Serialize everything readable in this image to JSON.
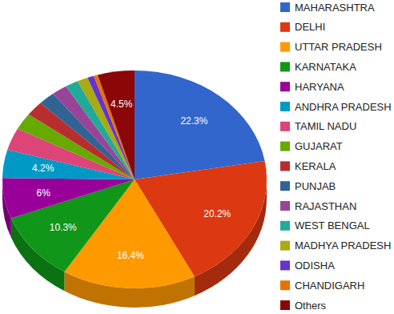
{
  "chart_data": {
    "type": "pie",
    "categories": [
      "MAHARASHTRA",
      "DELHI",
      "UTTAR PRADESH",
      "KARNATAKA",
      "HARYANA",
      "ANDHRA PRADESH",
      "TAMIL NADU",
      "GUJARAT",
      "KERALA",
      "PUNJAB",
      "RAJASTHAN",
      "WEST BENGAL",
      "MADHYA PRADESH",
      "ODISHA",
      "CHANDIGARH",
      "Others"
    ],
    "values": [
      22.3,
      20.2,
      16.4,
      10.3,
      6,
      4.2,
      3.3,
      2.5,
      2.2,
      2.0,
      1.9,
      1.6,
      1.3,
      0.8,
      0.5,
      4.5
    ],
    "value_labels": [
      "22.3%",
      "20.2%",
      "16.4%",
      "10.3%",
      "6%",
      "4.2%",
      null,
      null,
      null,
      null,
      null,
      null,
      null,
      null,
      null,
      "4.5%"
    ],
    "colors": [
      "#3366cc",
      "#dc3912",
      "#ff9900",
      "#109618",
      "#990099",
      "#0099c6",
      "#dd4477",
      "#66aa00",
      "#b82e2e",
      "#316395",
      "#994499",
      "#22aa99",
      "#aaaa11",
      "#6633cc",
      "#e67300",
      "#8b0707"
    ],
    "data_labels": true,
    "legend": "right"
  }
}
